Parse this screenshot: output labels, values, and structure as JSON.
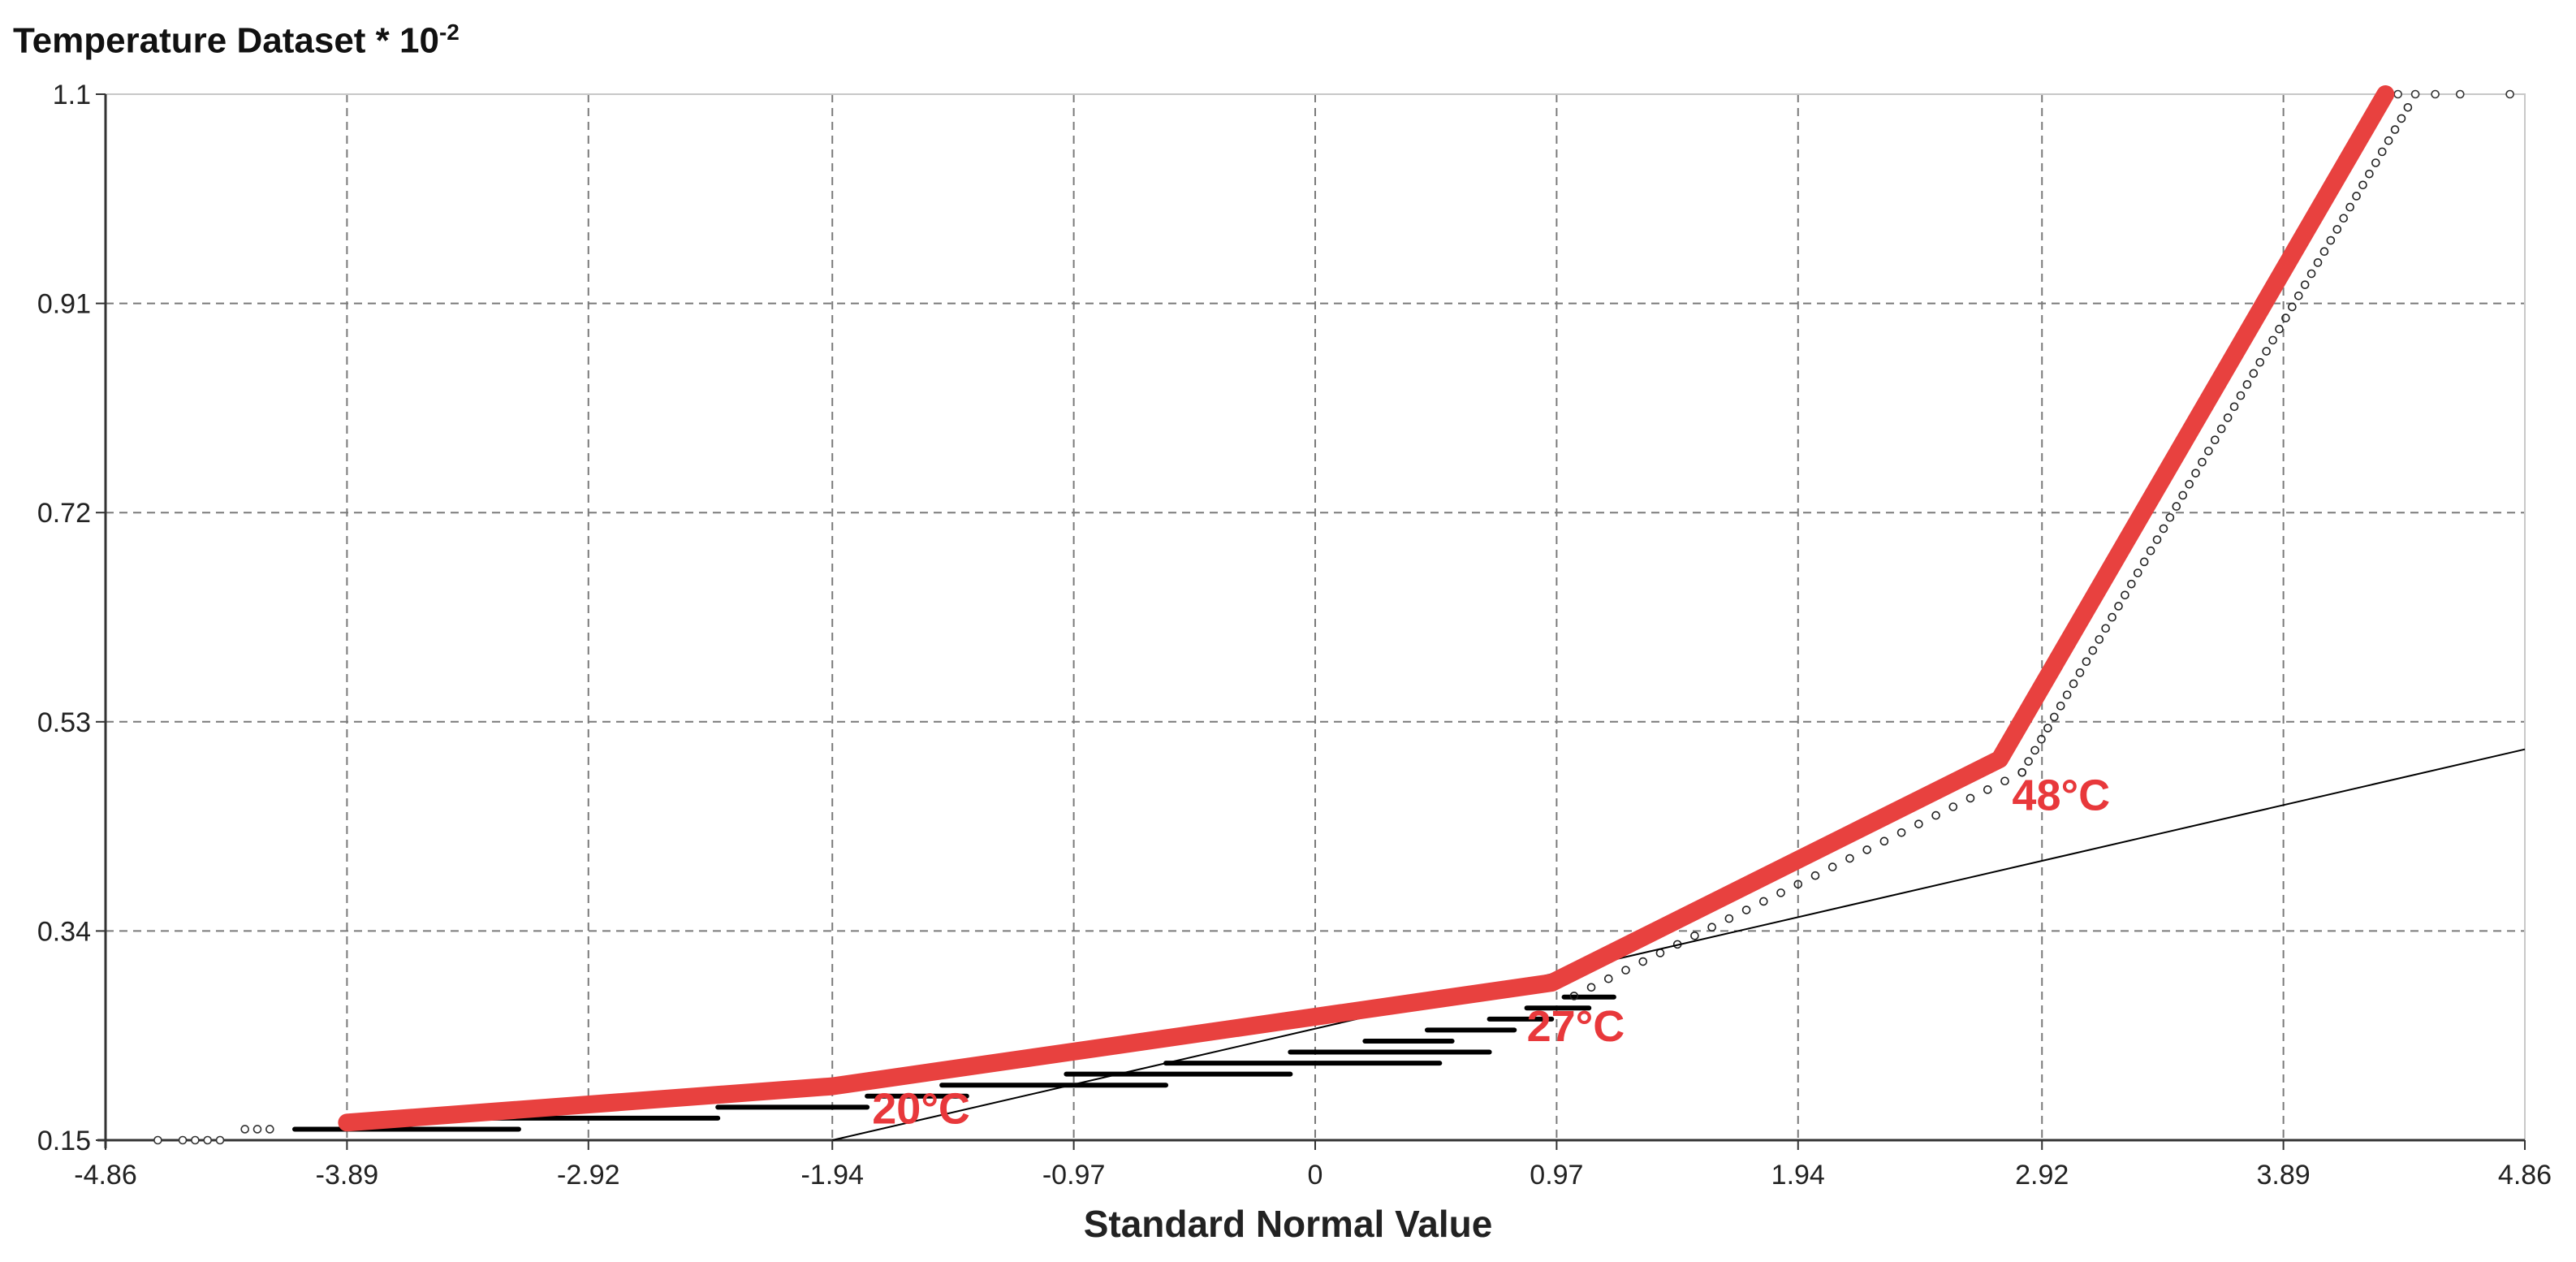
{
  "chart_data": {
    "type": "line",
    "title": "",
    "ylabel_main": "Temperature Dataset * 10",
    "ylabel_exponent": "-2",
    "xlabel": "Standard Normal Value",
    "xlim": [
      -4.86,
      4.86
    ],
    "ylim": [
      0.15,
      1.1
    ],
    "x_ticks": [
      "-4.86",
      "-3.89",
      "-2.92",
      "-1.94",
      "-0.97",
      "0",
      "0.97",
      "1.94",
      "2.92",
      "3.89",
      "4.86"
    ],
    "y_ticks": [
      "0.15",
      "0.34",
      "0.53",
      "0.72",
      "0.91",
      "1.1"
    ],
    "grid": true,
    "colors": {
      "fit": "#e8413f",
      "annotation": "#e8383b",
      "points": "#000000",
      "reference": "#000000"
    },
    "series": [
      {
        "role": "piecewise-fit",
        "x": [
          -3.89,
          -1.94,
          0.95,
          2.75,
          4.3
        ],
        "y": [
          0.166,
          0.199,
          0.293,
          0.496,
          1.1
        ]
      },
      {
        "role": "reference-line",
        "x": [
          -1.94,
          4.86
        ],
        "y": [
          0.15,
          0.505
        ]
      },
      {
        "role": "observed-quantiles",
        "steps": [
          {
            "x0": -4.1,
            "x1": -3.2,
            "y": 0.16
          },
          {
            "x0": -3.4,
            "x1": -2.4,
            "y": 0.17
          },
          {
            "x0": -2.4,
            "x1": -1.8,
            "y": 0.18
          },
          {
            "x0": -1.8,
            "x1": -1.4,
            "y": 0.19
          },
          {
            "x0": -1.5,
            "x1": -0.6,
            "y": 0.2
          },
          {
            "x0": -1.0,
            "x1": -0.1,
            "y": 0.21
          },
          {
            "x0": -0.6,
            "x1": 0.5,
            "y": 0.22
          },
          {
            "x0": -0.1,
            "x1": 0.7,
            "y": 0.23
          },
          {
            "x0": 0.2,
            "x1": 0.55,
            "y": 0.24
          },
          {
            "x0": 0.45,
            "x1": 0.8,
            "y": 0.25
          },
          {
            "x0": 0.7,
            "x1": 0.95,
            "y": 0.26
          },
          {
            "x0": 0.85,
            "x1": 1.1,
            "y": 0.27
          },
          {
            "x0": 1.0,
            "x1": 1.2,
            "y": 0.28
          }
        ],
        "tail_points": [
          {
            "x": -4.65,
            "y": 0.15
          },
          {
            "x": -4.55,
            "y": 0.15
          },
          {
            "x": -4.5,
            "y": 0.15
          },
          {
            "x": -4.45,
            "y": 0.15
          },
          {
            "x": -4.4,
            "y": 0.15
          },
          {
            "x": -4.3,
            "y": 0.16
          },
          {
            "x": -4.25,
            "y": 0.16
          },
          {
            "x": -4.2,
            "y": 0.16
          },
          {
            "x": 4.35,
            "y": 1.1
          },
          {
            "x": 4.42,
            "y": 1.1
          },
          {
            "x": 4.5,
            "y": 1.1
          },
          {
            "x": 4.6,
            "y": 1.1
          },
          {
            "x": 4.8,
            "y": 1.1
          }
        ]
      }
    ],
    "annotations": [
      {
        "text": "20°C",
        "x": -1.78,
        "y": 0.165
      },
      {
        "text": "27°C",
        "x": 0.85,
        "y": 0.24
      },
      {
        "text": "48°C",
        "x": 2.8,
        "y": 0.45
      }
    ]
  }
}
